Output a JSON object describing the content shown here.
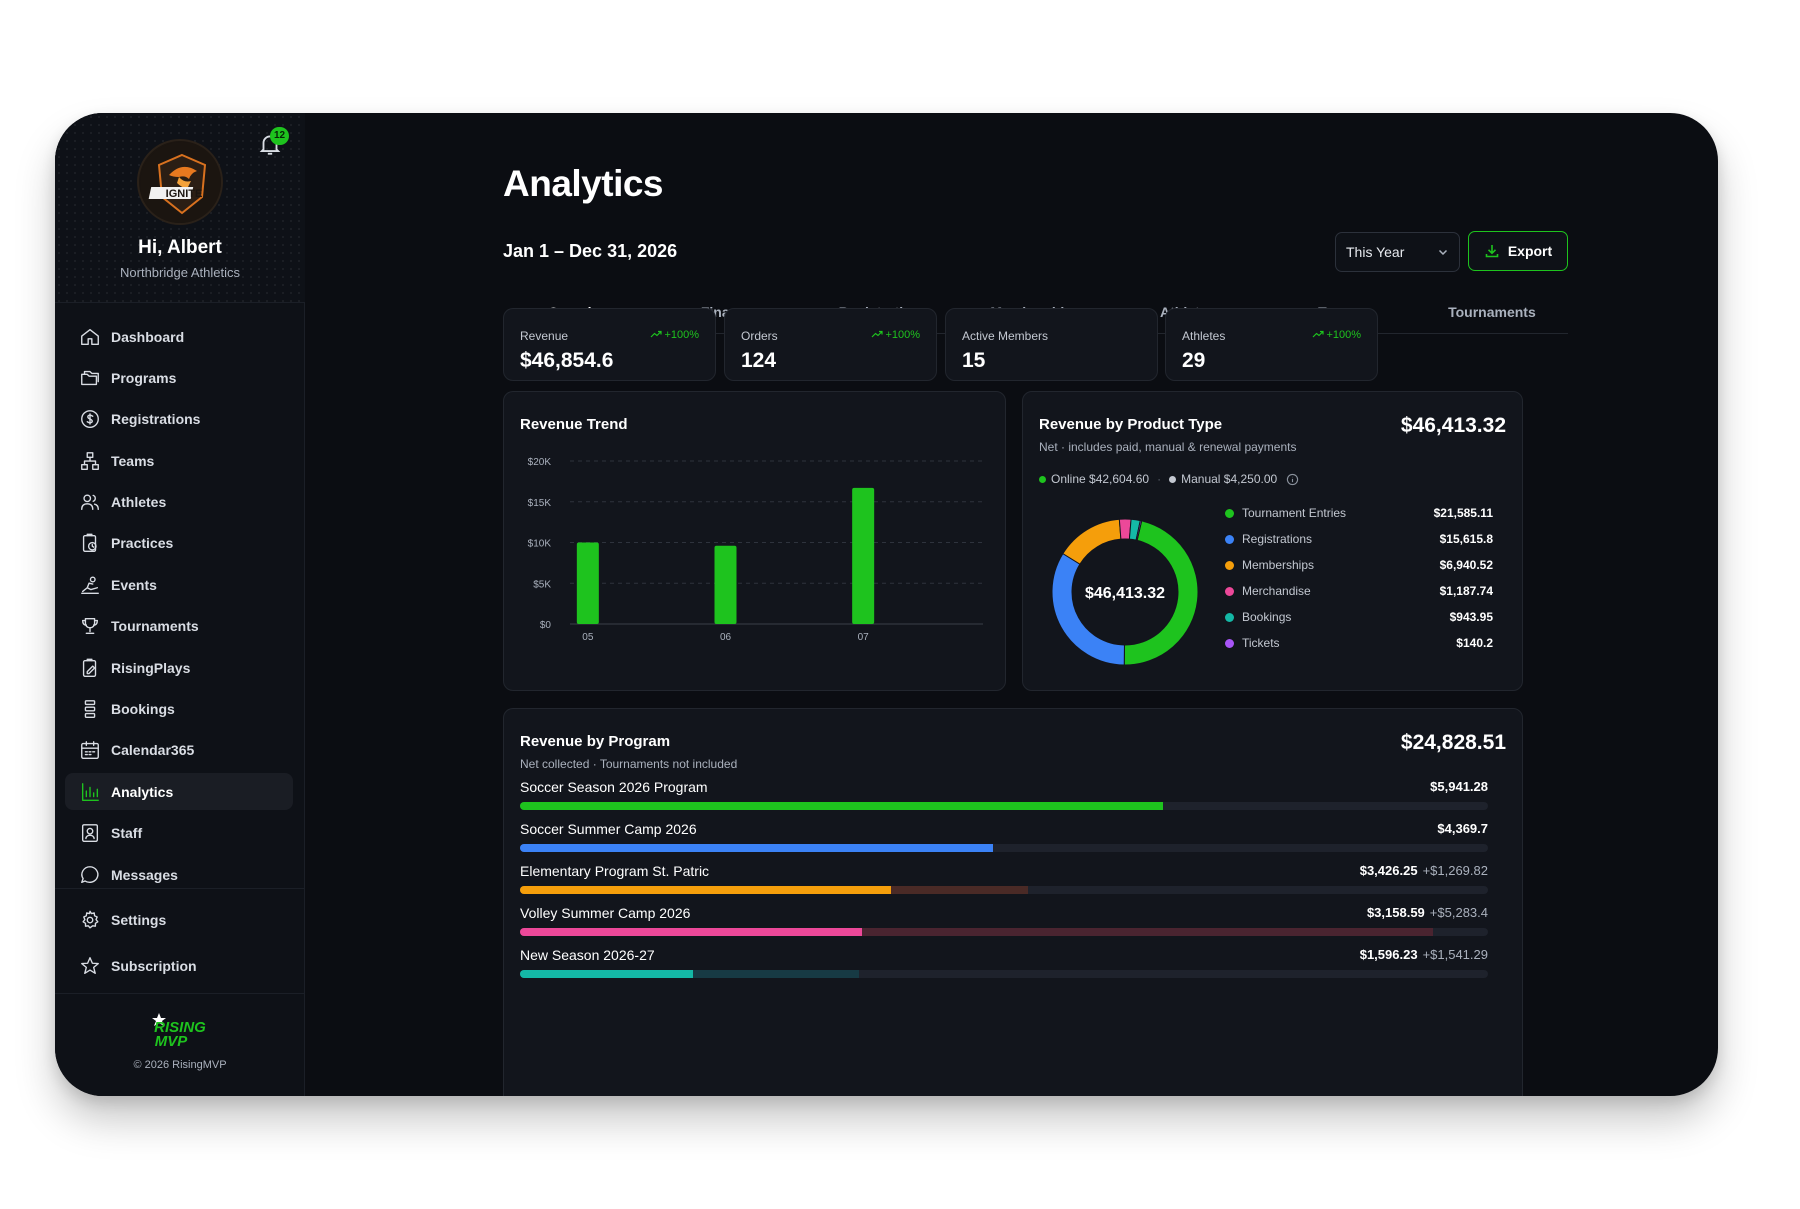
{
  "sidebar": {
    "greeting": "Hi, Albert",
    "org": "Northbridge Athletics",
    "notification_count": "12",
    "items": [
      {
        "id": "dashboard",
        "label": "Dashboard",
        "icon": "home-icon"
      },
      {
        "id": "programs",
        "label": "Programs",
        "icon": "folders-icon"
      },
      {
        "id": "registrations",
        "label": "Registrations",
        "icon": "dollar-circle-icon"
      },
      {
        "id": "teams",
        "label": "Teams",
        "icon": "org-chart-icon"
      },
      {
        "id": "athletes",
        "label": "Athletes",
        "icon": "users-icon"
      },
      {
        "id": "practices",
        "label": "Practices",
        "icon": "clipboard-clock-icon"
      },
      {
        "id": "events",
        "label": "Events",
        "icon": "ball-kick-icon"
      },
      {
        "id": "tournaments",
        "label": "Tournaments",
        "icon": "trophy-icon"
      },
      {
        "id": "risingplays",
        "label": "RisingPlays",
        "icon": "clipboard-edit-icon"
      },
      {
        "id": "bookings",
        "label": "Bookings",
        "icon": "list-stack-icon"
      },
      {
        "id": "calendar365",
        "label": "Calendar365",
        "icon": "calendar-icon"
      },
      {
        "id": "analytics",
        "label": "Analytics",
        "icon": "bar-chart-icon",
        "active": true
      },
      {
        "id": "staff",
        "label": "Staff",
        "icon": "id-badge-icon"
      },
      {
        "id": "messages",
        "label": "Messages",
        "icon": "chat-bubble-icon"
      }
    ],
    "bottom_items": [
      {
        "id": "settings",
        "label": "Settings",
        "icon": "gear-icon"
      },
      {
        "id": "subscription",
        "label": "Subscription",
        "icon": "star-icon"
      }
    ],
    "copyright": "© 2026 RisingMVP"
  },
  "header": {
    "title": "Analytics",
    "date_range": "Jan 1 – Dec 31, 2026",
    "period": "This Year",
    "export_label": "Export"
  },
  "tabs": [
    {
      "label": "Overview",
      "active": true
    },
    {
      "label": "Finances"
    },
    {
      "label": "Registrations"
    },
    {
      "label": "Memberships"
    },
    {
      "label": "Athletes"
    },
    {
      "label": "Teams"
    },
    {
      "label": "Tournaments"
    }
  ],
  "kpis": [
    {
      "label": "Revenue",
      "value": "$46,854.6",
      "delta": "+100%"
    },
    {
      "label": "Orders",
      "value": "124",
      "delta": "+100%"
    },
    {
      "label": "Active Members",
      "value": "15",
      "delta": ""
    },
    {
      "label": "Athletes",
      "value": "29",
      "delta": "+100%"
    }
  ],
  "revenue_trend": {
    "title": "Revenue Trend"
  },
  "product_type": {
    "title": "Revenue by Product Type",
    "subtitle": "Net · includes paid, manual & renewal payments",
    "total": "$46,413.32",
    "online_label": "Online $42,604.60",
    "manual_label": "Manual $4,250.00",
    "center_label": "$46,413.32"
  },
  "revenue_by_program": {
    "title": "Revenue by Program",
    "subtitle": "Net collected · Tournaments not included",
    "total": "$24,828.51",
    "max": 8950,
    "rows": [
      {
        "name": "Soccer Season 2026 Program",
        "amount": "$5,941.28",
        "extra": "",
        "value": 5941.28,
        "extra_value": 0,
        "color": "#1ec31e",
        "ext_color": "#1e222c"
      },
      {
        "name": "Soccer Summer Camp 2026",
        "amount": "$4,369.7",
        "extra": "",
        "value": 4369.7,
        "extra_value": 0,
        "color": "#3b82f6",
        "ext_color": "#1e222c"
      },
      {
        "name": "Elementary Program St. Patric",
        "amount": "$3,426.25",
        "extra": "+$1,269.82",
        "value": 3426.25,
        "extra_value": 1269.82,
        "color": "#f59e0b",
        "ext_color": "#4a2a26"
      },
      {
        "name": "Volley Summer Camp 2026",
        "amount": "$3,158.59",
        "extra": "+$5,283.4",
        "value": 3158.59,
        "extra_value": 5283.4,
        "color": "#ec4899",
        "ext_color": "#4a2430"
      },
      {
        "name": "New Season 2026-27",
        "amount": "$1,596.23",
        "extra": "+$1,541.29",
        "value": 1596.23,
        "extra_value": 1541.29,
        "color": "#14b8a6",
        "ext_color": "#173a44"
      }
    ]
  },
  "chart_data": [
    {
      "type": "bar",
      "title": "Revenue Trend",
      "categories": [
        "05",
        "06",
        "07"
      ],
      "values": [
        10000,
        9600,
        16700
      ],
      "ylim": [
        0,
        20000
      ],
      "yticks": [
        "$0",
        "$5K",
        "$10K",
        "$15K",
        "$20K"
      ],
      "grid": true,
      "color": "#1ec31e"
    },
    {
      "type": "pie",
      "title": "Revenue by Product Type",
      "donut": true,
      "categories": [
        "Tournament Entries",
        "Registrations",
        "Memberships",
        "Merchandise",
        "Bookings",
        "Tickets"
      ],
      "values": [
        21585.11,
        15615.8,
        6940.52,
        1187.74,
        943.95,
        140.2
      ],
      "labels": [
        "$21,585.11",
        "$15,615.8",
        "$6,940.52",
        "$1,187.74",
        "$943.95",
        "$140.2"
      ],
      "colors": [
        "#1ec31e",
        "#3b82f6",
        "#f59e0b",
        "#ec4899",
        "#14b8a6",
        "#a855f7"
      ],
      "legend": "right"
    }
  ]
}
